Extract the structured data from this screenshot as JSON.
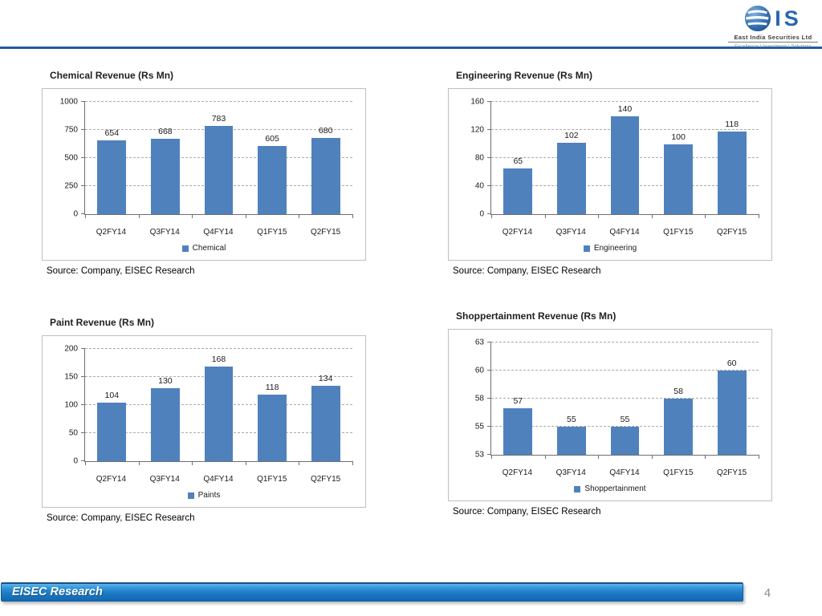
{
  "header": {
    "logo": {
      "symbol": "IS",
      "company": "East India Securities Ltd",
      "tagline": "Excellence  |  Investment  |  Solutions"
    }
  },
  "chart_data": [
    {
      "type": "bar",
      "title": "Chemical Revenue (Rs Mn)",
      "categories": [
        "Q2FY14",
        "Q3FY14",
        "Q4FY14",
        "Q1FY15",
        "Q2FY15"
      ],
      "values": [
        654,
        668,
        783,
        605,
        680
      ],
      "legend": "Chemical",
      "legend_position": "bottom",
      "ylim": [
        0,
        1000
      ],
      "yticks": [
        0,
        250,
        500,
        750,
        1000
      ],
      "grid": true,
      "source_note": "Source: Company, EISEC Research"
    },
    {
      "type": "bar",
      "title": "Engineering Revenue (Rs Mn)",
      "categories": [
        "Q2FY14",
        "Q3FY14",
        "Q4FY14",
        "Q1FY15",
        "Q2FY15"
      ],
      "values": [
        65,
        102,
        140,
        100,
        118
      ],
      "legend": "Engineering",
      "legend_position": "bottom",
      "ylim": [
        0,
        160
      ],
      "yticks": [
        0,
        40,
        80,
        120,
        160
      ],
      "grid": true,
      "source_note": "Source: Company, EISEC Research"
    },
    {
      "type": "bar",
      "title": "Paint Revenue (Rs Mn)",
      "categories": [
        "Q2FY14",
        "Q3FY14",
        "Q4FY14",
        "Q1FY15",
        "Q2FY15"
      ],
      "values": [
        104,
        130,
        168,
        118,
        134
      ],
      "legend": "Paints",
      "legend_position": "bottom",
      "ylim": [
        0,
        200
      ],
      "yticks": [
        0,
        50,
        100,
        150,
        200
      ],
      "grid": true,
      "source_note": "Source: Company, EISEC Research"
    },
    {
      "type": "bar",
      "title": "Shoppertainment Revenue (Rs Mn)",
      "categories": [
        "Q2FY14",
        "Q3FY14",
        "Q4FY14",
        "Q1FY15",
        "Q2FY15"
      ],
      "values": [
        57,
        55,
        55,
        58,
        60
      ],
      "legend": "Shoppertainment",
      "legend_position": "bottom",
      "ylim": [
        53,
        63
      ],
      "yticks": [
        53,
        55,
        58,
        60,
        63
      ],
      "grid": true,
      "source_note": "Source: Company, EISEC Research"
    }
  ],
  "footer": {
    "brand": "EISEC Research",
    "page_number": "4"
  },
  "colors": {
    "bar": "#4F81BD",
    "grid": "#ABABAB",
    "axis": "#6F6F6F",
    "box_border": "#BFBFBF",
    "top_rule": "#1E5CA6",
    "footer_bar_blue": "#1B77C4",
    "page_number": "#8A8A8A"
  }
}
